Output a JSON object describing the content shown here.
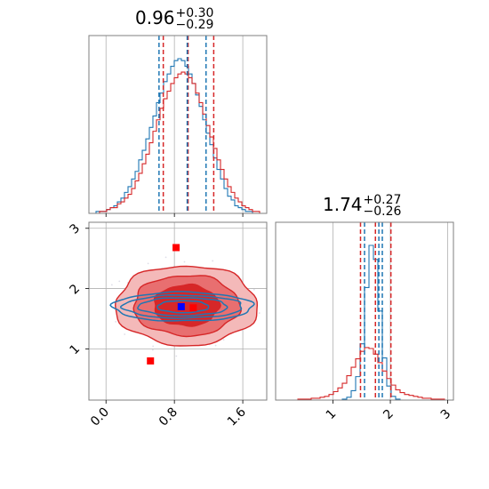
{
  "colors": {
    "red": "#d62728",
    "blue": "#1f77b4",
    "grid": "#b0b0b0",
    "frame": "#7f7f7f"
  },
  "chart_data": [
    {
      "type": "histogram",
      "panel": "top-left",
      "title": {
        "value": "0.96",
        "plus": "+0.30",
        "minus": "−0.29"
      },
      "xlim": [
        -0.2,
        1.88
      ],
      "grid": true,
      "red_quantiles": [
        0.67,
        0.96,
        1.26
      ],
      "blue_quantiles": [
        0.62,
        0.95,
        1.17
      ],
      "red_bins": [
        0,
        0,
        0,
        1,
        1,
        2,
        3,
        3,
        5,
        6,
        8,
        10,
        13,
        17,
        21,
        26,
        31,
        37,
        43,
        49,
        55,
        60,
        64,
        68,
        71,
        73,
        74,
        73,
        71,
        68,
        63,
        58,
        52,
        46,
        40,
        34,
        28,
        23,
        18,
        14,
        11,
        8,
        6,
        4,
        3,
        2,
        1,
        1,
        0,
        0
      ],
      "blue_bins": [
        0,
        0,
        1,
        1,
        1,
        2,
        3,
        4,
        6,
        8,
        11,
        14,
        18,
        22,
        28,
        33,
        39,
        45,
        51,
        58,
        63,
        69,
        73,
        77,
        80,
        81,
        80,
        77,
        73,
        68,
        62,
        56,
        49,
        42,
        36,
        29,
        23,
        18,
        13,
        9,
        7,
        4,
        3,
        2,
        1,
        1,
        0,
        0,
        0,
        0
      ]
    },
    {
      "type": "contour",
      "panel": "bottom-left",
      "xlim": [
        -0.2,
        1.88
      ],
      "ylim": [
        0.15,
        3.1
      ],
      "x_ticks": [
        "0.0",
        "0.8",
        "1.6"
      ],
      "x_tick_values": [
        0.0,
        0.8,
        1.6
      ],
      "y_ticks": [
        "1",
        "2",
        "3"
      ],
      "y_tick_values": [
        1,
        2,
        3
      ],
      "grid": true,
      "red_center": [
        0.94,
        1.72
      ],
      "red_radii": [
        [
          0.38,
          0.34
        ],
        [
          0.62,
          0.5
        ],
        [
          0.83,
          0.66
        ]
      ],
      "blue_center": [
        0.9,
        1.7
      ],
      "blue_radii": [
        [
          0.3,
          0.1
        ],
        [
          0.52,
          0.15
        ],
        [
          0.7,
          0.19
        ],
        [
          0.82,
          0.24
        ]
      ],
      "red_markers": [
        [
          0.82,
          2.68
        ],
        [
          0.52,
          0.8
        ],
        [
          1.02,
          1.68
        ]
      ],
      "blue_markers": [
        [
          0.88,
          1.7
        ]
      ]
    },
    {
      "type": "histogram",
      "panel": "bottom-right",
      "title": {
        "value": "1.74",
        "plus": "+0.27",
        "minus": "−0.26"
      },
      "xlim": [
        0.0,
        3.1
      ],
      "x_ticks": [
        "1",
        "2",
        "3"
      ],
      "x_tick_values": [
        1,
        2,
        3
      ],
      "grid": true,
      "red_quantiles": [
        1.48,
        1.74,
        2.01
      ],
      "blue_quantiles": [
        1.55,
        1.8,
        1.86
      ],
      "red_bins": [
        0,
        0,
        0,
        0,
        0,
        1,
        1,
        1,
        2,
        2,
        3,
        4,
        6,
        9,
        13,
        18,
        26,
        35,
        44,
        52,
        56,
        55,
        49,
        40,
        31,
        23,
        16,
        11,
        8,
        6,
        5,
        4,
        3,
        2,
        2,
        1,
        1,
        1,
        0,
        0
      ],
      "blue_bins": [
        0,
        0,
        0,
        0,
        0,
        0,
        0,
        0,
        0,
        0,
        0,
        0,
        0,
        0,
        0,
        1,
        3,
        10,
        25,
        60,
        120,
        165,
        150,
        95,
        45,
        15,
        4,
        1,
        0,
        0,
        0,
        0,
        0,
        0,
        0,
        0,
        0,
        0,
        0,
        0
      ]
    }
  ]
}
